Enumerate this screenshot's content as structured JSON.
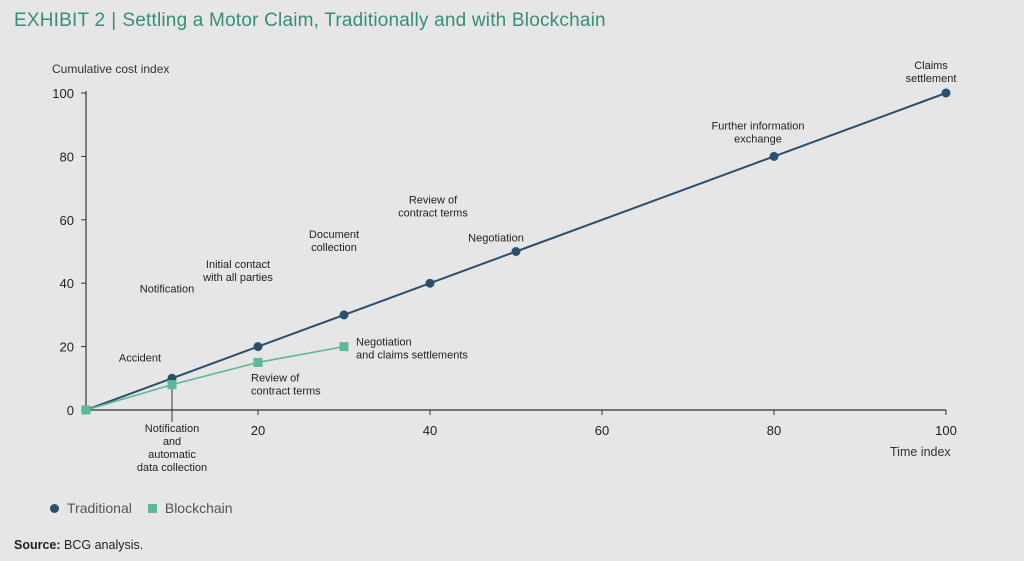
{
  "header": {
    "exhibit": "EXHIBIT 2",
    "separator": "|",
    "title": "Settling a Motor Claim, Traditionally and with Blockchain"
  },
  "source": {
    "label": "Source:",
    "text": "BCG analysis."
  },
  "colors": {
    "traditional": "#2c4f6e",
    "blockchain": "#5bb99a",
    "axis": "#333333",
    "title": "#3a8c7a"
  },
  "chart_data": {
    "type": "line",
    "ylabel": "Cumulative cost index",
    "xlabel": "Time index",
    "xlim": [
      0,
      100
    ],
    "ylim": [
      0,
      100
    ],
    "x_ticks": [
      20,
      40,
      60,
      80,
      100
    ],
    "y_ticks": [
      0,
      20,
      40,
      60,
      80,
      100
    ],
    "grid": false,
    "legend_position": "bottom-left",
    "series": [
      {
        "name": "Traditional",
        "marker": "circle",
        "points": [
          {
            "x": 0,
            "y": 0,
            "label": ""
          },
          {
            "x": 10,
            "y": 10,
            "label": "Accident"
          },
          {
            "x": 20,
            "y": 20,
            "label": "Notification"
          },
          {
            "x": 30,
            "y": 30,
            "label": "Initial contact\nwith all parties"
          },
          {
            "x": 40,
            "y": 40,
            "label": "Document\ncollection"
          },
          {
            "x": 50,
            "y": 50,
            "label": "Review of\ncontract terms"
          },
          {
            "x": 80,
            "y": 80,
            "label": "Negotiation"
          },
          {
            "x": 100,
            "y": 100,
            "label": "Further information\nexchange"
          }
        ]
      },
      {
        "name": "Blockchain",
        "marker": "square",
        "points": [
          {
            "x": 0,
            "y": 0,
            "label": ""
          },
          {
            "x": 10,
            "y": 8,
            "label": "Notification\nand\nautomatic\ndata collection"
          },
          {
            "x": 20,
            "y": 15,
            "label": "Review of\ncontract terms"
          },
          {
            "x": 30,
            "y": 20,
            "label": "Negotiation\nand claims settlements"
          }
        ]
      }
    ],
    "annotations": [
      {
        "text": "Accident"
      },
      {
        "text": "Notification"
      },
      {
        "text": "Initial contact\nwith all parties"
      },
      {
        "text": "Document\ncollection"
      },
      {
        "text": "Review of\ncontract terms"
      },
      {
        "text": "Negotiation"
      },
      {
        "text": "Further information\nexchange"
      },
      {
        "text": "Claims\nsettlement"
      },
      {
        "text": "Notification\nand\nautomatic\ndata collection"
      },
      {
        "text": "Review of\ncontract terms"
      },
      {
        "text": "Negotiation\nand claims settlements"
      }
    ]
  }
}
